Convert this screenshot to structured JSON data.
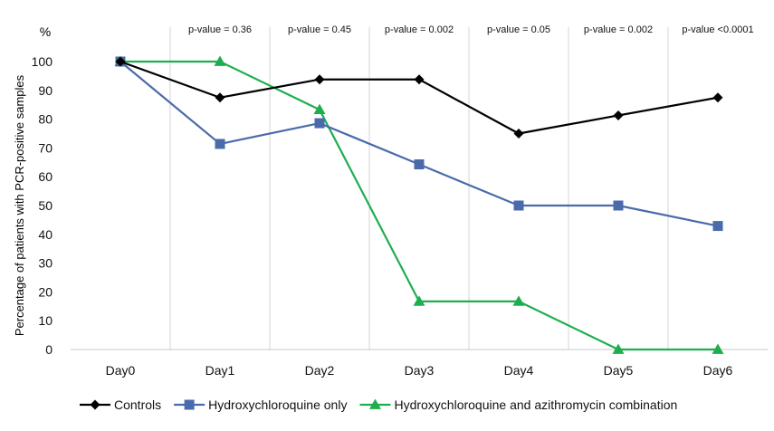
{
  "chart_data": {
    "type": "line",
    "title": "",
    "xlabel": "",
    "ylabel": "Percentage of patients with PCR-positive samples",
    "y_unit_label": "%",
    "ylim": [
      0,
      100
    ],
    "y_ticks": [
      0,
      10,
      20,
      30,
      40,
      50,
      60,
      70,
      80,
      90,
      100
    ],
    "grid": {
      "vertical_category_separators": true,
      "horizontal": false
    },
    "legend_position": "bottom",
    "categories": [
      "Day0",
      "Day1",
      "Day2",
      "Day3",
      "Day4",
      "Day5",
      "Day6"
    ],
    "p_values": [
      "",
      "p-value = 0.36",
      "p-value = 0.45",
      "p-value = 0.002",
      "p-value = 0.05",
      "p-value = 0.002",
      "p-value <0.0001"
    ],
    "series": [
      {
        "name": "Controls",
        "color": "#000000",
        "marker": "diamond",
        "values": [
          100,
          87.5,
          93.8,
          93.8,
          75,
          81.3,
          87.5
        ]
      },
      {
        "name": "Hydroxychloroquine only",
        "color": "#4a6bab",
        "marker": "square",
        "values": [
          100,
          71.4,
          78.6,
          64.3,
          50,
          50,
          42.9
        ]
      },
      {
        "name": "Hydroxychloroquine and azithromycin combination",
        "color": "#1fae4f",
        "marker": "triangle",
        "values": [
          100,
          100,
          83.3,
          16.7,
          16.7,
          0,
          0
        ]
      }
    ]
  }
}
